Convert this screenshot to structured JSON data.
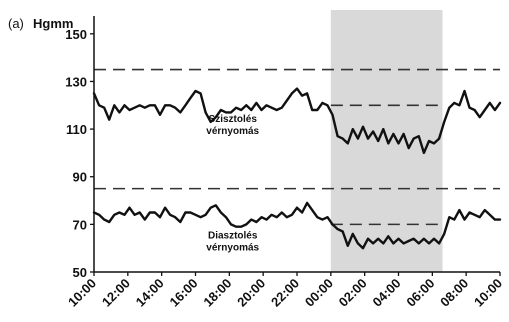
{
  "chart_data": {
    "type": "line",
    "panel_label": "(a)",
    "y_unit": "Hgmm",
    "ylim": [
      50,
      160
    ],
    "y_ticks": [
      50,
      70,
      90,
      110,
      130,
      150
    ],
    "x_ticks": [
      "10:00",
      "12:00",
      "14:00",
      "16:00",
      "18:00",
      "20:00",
      "22:00",
      "00:00",
      "02:00",
      "04:00",
      "06:00",
      "08:00",
      "10:00"
    ],
    "x_hours": [
      0,
      24
    ],
    "shaded_period": {
      "from_hour": 14.0,
      "to_hour": 20.6,
      "color": "#d9d9d9"
    },
    "reference_lines": [
      {
        "y": 135,
        "from_hour": 0,
        "to_hour": 24
      },
      {
        "y": 120,
        "from_hour": 14,
        "to_hour": 20.6
      },
      {
        "y": 85,
        "from_hour": 0,
        "to_hour": 24
      },
      {
        "y": 70,
        "from_hour": 14,
        "to_hour": 20.6
      }
    ],
    "series": [
      {
        "name": "Szisztolés\nvérnyomás",
        "label_hour": 8.2,
        "label_y": 113,
        "points": [
          [
            0,
            125
          ],
          [
            0.3,
            120
          ],
          [
            0.6,
            119
          ],
          [
            0.9,
            114
          ],
          [
            1.2,
            120
          ],
          [
            1.5,
            117
          ],
          [
            1.8,
            120
          ],
          [
            2.1,
            118
          ],
          [
            2.4,
            119
          ],
          [
            2.7,
            120
          ],
          [
            3.0,
            119
          ],
          [
            3.3,
            120
          ],
          [
            3.6,
            120
          ],
          [
            3.9,
            116
          ],
          [
            4.2,
            120
          ],
          [
            4.5,
            120
          ],
          [
            4.8,
            119
          ],
          [
            5.1,
            117
          ],
          [
            5.4,
            120
          ],
          [
            5.7,
            123
          ],
          [
            6.0,
            126
          ],
          [
            6.3,
            125
          ],
          [
            6.6,
            117
          ],
          [
            6.9,
            113
          ],
          [
            7.2,
            115
          ],
          [
            7.5,
            118
          ],
          [
            7.8,
            117
          ],
          [
            8.1,
            117
          ],
          [
            8.4,
            119
          ],
          [
            8.7,
            118
          ],
          [
            9.0,
            120
          ],
          [
            9.3,
            118
          ],
          [
            9.6,
            121
          ],
          [
            9.9,
            118
          ],
          [
            10.2,
            120
          ],
          [
            10.5,
            119
          ],
          [
            10.8,
            118
          ],
          [
            11.1,
            119
          ],
          [
            11.4,
            122
          ],
          [
            11.7,
            125
          ],
          [
            12.0,
            127
          ],
          [
            12.3,
            124
          ],
          [
            12.6,
            125
          ],
          [
            12.9,
            118
          ],
          [
            13.2,
            118
          ],
          [
            13.5,
            121
          ],
          [
            13.8,
            120
          ],
          [
            14.1,
            116
          ],
          [
            14.4,
            107
          ],
          [
            14.7,
            106
          ],
          [
            15.0,
            104
          ],
          [
            15.3,
            110
          ],
          [
            15.6,
            106
          ],
          [
            15.9,
            111
          ],
          [
            16.2,
            106
          ],
          [
            16.5,
            109
          ],
          [
            16.8,
            105
          ],
          [
            17.1,
            110
          ],
          [
            17.4,
            104
          ],
          [
            17.7,
            108
          ],
          [
            18.0,
            104
          ],
          [
            18.3,
            108
          ],
          [
            18.6,
            102
          ],
          [
            18.9,
            106
          ],
          [
            19.2,
            107
          ],
          [
            19.5,
            100
          ],
          [
            19.8,
            105
          ],
          [
            20.1,
            104
          ],
          [
            20.4,
            106
          ],
          [
            20.7,
            113
          ],
          [
            21.0,
            119
          ],
          [
            21.3,
            121
          ],
          [
            21.6,
            120
          ],
          [
            21.9,
            126
          ],
          [
            22.2,
            119
          ],
          [
            22.5,
            118
          ],
          [
            22.8,
            115
          ],
          [
            23.1,
            118
          ],
          [
            23.4,
            121
          ],
          [
            23.7,
            118
          ],
          [
            24.0,
            121
          ]
        ]
      },
      {
        "name": "Diasztolés\nvérnyomás",
        "label_hour": 8.2,
        "label_y": 64,
        "points": [
          [
            0,
            75
          ],
          [
            0.3,
            74
          ],
          [
            0.6,
            72
          ],
          [
            0.9,
            71
          ],
          [
            1.2,
            74
          ],
          [
            1.5,
            75
          ],
          [
            1.8,
            74
          ],
          [
            2.1,
            77
          ],
          [
            2.4,
            74
          ],
          [
            2.7,
            75
          ],
          [
            3.0,
            72
          ],
          [
            3.3,
            75
          ],
          [
            3.6,
            75
          ],
          [
            3.9,
            73
          ],
          [
            4.2,
            77
          ],
          [
            4.5,
            74
          ],
          [
            4.8,
            73
          ],
          [
            5.1,
            71
          ],
          [
            5.4,
            75
          ],
          [
            5.7,
            75
          ],
          [
            6.0,
            74
          ],
          [
            6.3,
            73
          ],
          [
            6.6,
            74
          ],
          [
            6.9,
            77
          ],
          [
            7.2,
            78
          ],
          [
            7.5,
            75
          ],
          [
            7.8,
            73
          ],
          [
            8.1,
            70
          ],
          [
            8.4,
            69
          ],
          [
            8.7,
            69
          ],
          [
            9.0,
            70
          ],
          [
            9.3,
            72
          ],
          [
            9.6,
            71
          ],
          [
            9.9,
            73
          ],
          [
            10.2,
            72
          ],
          [
            10.5,
            74
          ],
          [
            10.8,
            73
          ],
          [
            11.1,
            75
          ],
          [
            11.4,
            73
          ],
          [
            11.7,
            74
          ],
          [
            12.0,
            77
          ],
          [
            12.3,
            75
          ],
          [
            12.6,
            79
          ],
          [
            12.9,
            76
          ],
          [
            13.2,
            73
          ],
          [
            13.5,
            72
          ],
          [
            13.8,
            73
          ],
          [
            14.1,
            70
          ],
          [
            14.4,
            68
          ],
          [
            14.7,
            67
          ],
          [
            15.0,
            61
          ],
          [
            15.3,
            66
          ],
          [
            15.6,
            62
          ],
          [
            15.9,
            60
          ],
          [
            16.2,
            64
          ],
          [
            16.5,
            62
          ],
          [
            16.8,
            64
          ],
          [
            17.1,
            62
          ],
          [
            17.4,
            65
          ],
          [
            17.7,
            62
          ],
          [
            18.0,
            64
          ],
          [
            18.3,
            62
          ],
          [
            18.6,
            63
          ],
          [
            18.9,
            64
          ],
          [
            19.2,
            62
          ],
          [
            19.5,
            64
          ],
          [
            19.8,
            62
          ],
          [
            20.1,
            64
          ],
          [
            20.4,
            62
          ],
          [
            20.7,
            66
          ],
          [
            21.0,
            73
          ],
          [
            21.3,
            72
          ],
          [
            21.6,
            76
          ],
          [
            21.9,
            72
          ],
          [
            22.2,
            75
          ],
          [
            22.5,
            74
          ],
          [
            22.8,
            73
          ],
          [
            23.1,
            76
          ],
          [
            23.4,
            74
          ],
          [
            23.7,
            72
          ],
          [
            24.0,
            72
          ]
        ]
      }
    ]
  }
}
